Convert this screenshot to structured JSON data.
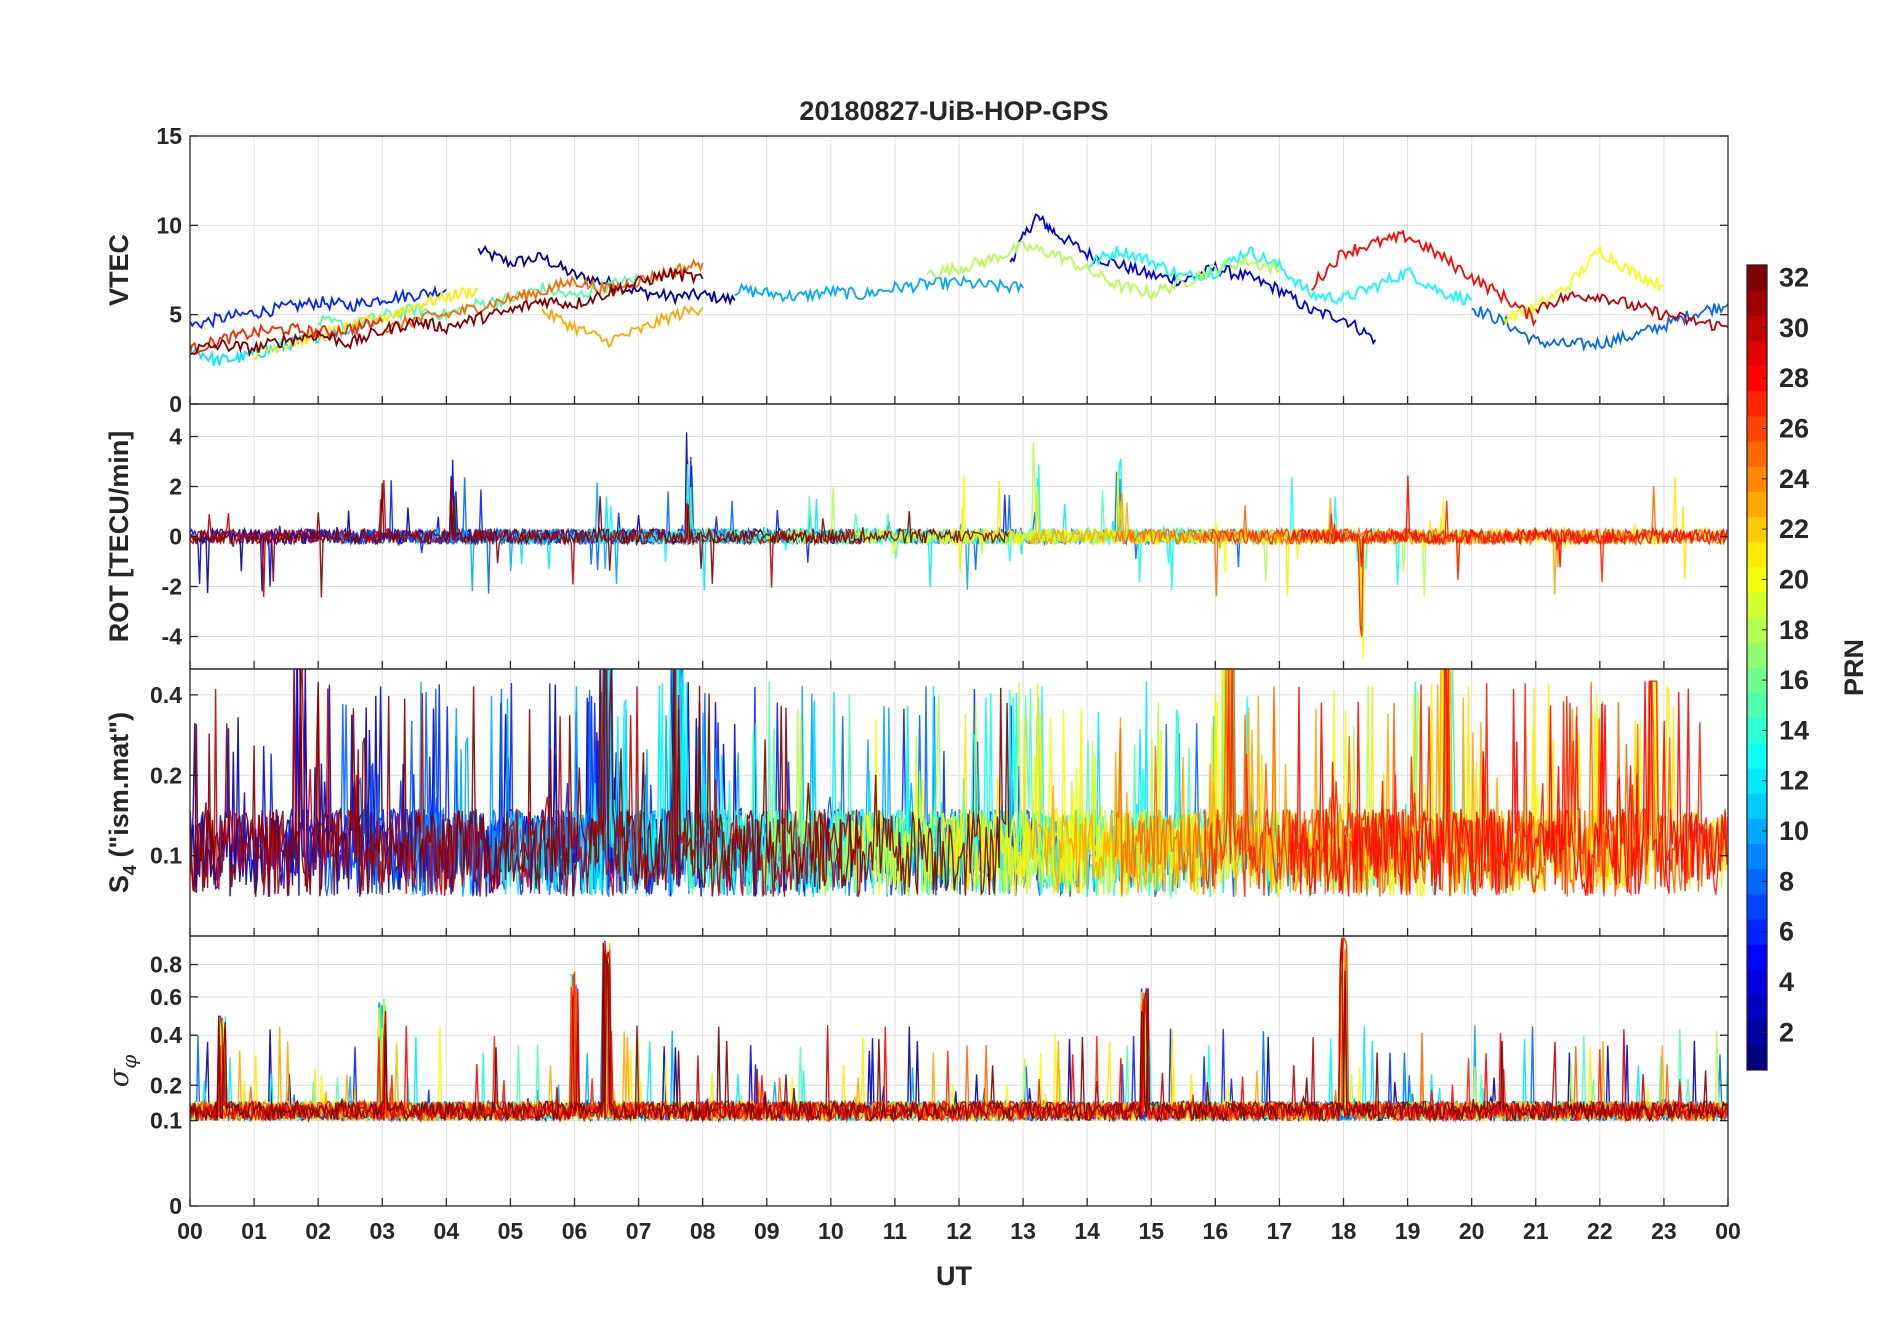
{
  "chart_data": {
    "type": "line",
    "title": "20180827-UiB-HOP-GPS",
    "xlabel": "UT",
    "x_tick_labels": [
      "00",
      "01",
      "02",
      "03",
      "04",
      "05",
      "06",
      "07",
      "08",
      "09",
      "10",
      "11",
      "12",
      "13",
      "14",
      "15",
      "16",
      "17",
      "18",
      "19",
      "20",
      "21",
      "22",
      "23",
      "00"
    ],
    "x_range_hours": [
      0,
      24
    ],
    "grid": true,
    "colorbar": {
      "label": "PRN",
      "range": [
        1,
        32
      ],
      "colormap": "jet",
      "tick_labels": [
        "2",
        "4",
        "6",
        "8",
        "10",
        "12",
        "14",
        "16",
        "18",
        "20",
        "22",
        "24",
        "26",
        "28",
        "30",
        "32"
      ],
      "placement": "right"
    },
    "panels": [
      {
        "id": "vtec",
        "ylabel": "VTEC",
        "ylim": [
          0,
          15
        ],
        "y_ticks": [
          0,
          5,
          10,
          15
        ],
        "y_tick_labels": [
          "0",
          "5",
          "10",
          "15"
        ],
        "series": [
          {
            "prn": 2,
            "x": [
              4.5,
              5.0,
              5.5,
              6.0,
              6.5,
              7.0,
              7.5,
              8.0,
              8.5
            ],
            "y": [
              8.6,
              7.9,
              8.2,
              7.2,
              6.8,
              6.3,
              6.0,
              6.1,
              5.8
            ]
          },
          {
            "prn": 4,
            "x": [
              12.8,
              13.2,
              13.5,
              14.0,
              14.5,
              15.0,
              15.5,
              16.0,
              16.5,
              17.0,
              17.5,
              18.0,
              18.5
            ],
            "y": [
              8.0,
              10.5,
              9.6,
              8.4,
              7.8,
              7.2,
              6.9,
              7.6,
              7.1,
              6.4,
              5.2,
              4.8,
              3.6
            ]
          },
          {
            "prn": 6,
            "x": [
              0.0,
              0.5,
              1.0,
              1.5,
              2.0,
              2.5,
              3.0,
              3.5,
              4.0
            ],
            "y": [
              4.4,
              4.8,
              5.1,
              5.4,
              5.7,
              5.5,
              5.9,
              6.1,
              6.4
            ]
          },
          {
            "prn": 8,
            "x": [
              20.0,
              20.5,
              21.0,
              21.5,
              22.0,
              22.5,
              23.0,
              23.5,
              24.0
            ],
            "y": [
              5.4,
              4.6,
              3.5,
              3.3,
              3.4,
              3.8,
              4.4,
              5.1,
              5.6
            ]
          },
          {
            "prn": 10,
            "x": [
              8.5,
              9.0,
              9.5,
              10.0,
              10.5,
              11.0,
              11.5,
              12.0,
              12.5,
              13.0
            ],
            "y": [
              6.4,
              6.2,
              6.0,
              6.3,
              6.1,
              6.5,
              6.7,
              6.8,
              6.6,
              6.5
            ]
          },
          {
            "prn": 12,
            "x": [
              0.0,
              0.4,
              0.8,
              1.2,
              1.6,
              2.0,
              2.5,
              3.0
            ],
            "y": [
              3.2,
              2.4,
              2.6,
              3.0,
              3.4,
              3.8,
              4.2,
              4.7
            ]
          },
          {
            "prn": 13,
            "x": [
              14.0,
              14.5,
              15.0,
              15.5,
              16.0,
              16.5,
              17.0,
              17.5,
              18.0,
              18.5,
              19.0,
              19.5,
              20.0
            ],
            "y": [
              7.8,
              8.6,
              8.0,
              7.1,
              7.4,
              8.6,
              7.7,
              6.1,
              5.9,
              6.6,
              7.4,
              6.3,
              5.8
            ]
          },
          {
            "prn": 15,
            "x": [
              2.0,
              2.5,
              3.0,
              3.5,
              4.0,
              4.5,
              5.0,
              5.5,
              6.0,
              6.5,
              7.0
            ],
            "y": [
              4.6,
              4.4,
              4.9,
              5.3,
              5.0,
              5.6,
              5.9,
              6.5,
              6.0,
              6.6,
              7.0
            ]
          },
          {
            "prn": 18,
            "x": [
              11.5,
              12.0,
              12.5,
              13.0,
              13.5,
              14.0,
              14.5,
              15.0,
              15.5,
              16.0,
              16.5,
              17.0
            ],
            "y": [
              7.3,
              7.6,
              8.1,
              8.8,
              8.4,
              7.5,
              6.6,
              6.2,
              6.8,
              7.6,
              8.0,
              7.5
            ]
          },
          {
            "prn": 20,
            "x": [
              20.5,
              21.0,
              21.5,
              22.0,
              22.5,
              23.0
            ],
            "y": [
              4.8,
              5.4,
              6.6,
              8.6,
              7.4,
              6.6
            ]
          },
          {
            "prn": 21,
            "x": [
              1.0,
              1.5,
              2.0,
              2.5,
              3.0,
              3.5,
              4.0,
              4.5
            ],
            "y": [
              2.8,
              3.4,
              3.8,
              4.3,
              4.8,
              5.5,
              6.0,
              6.4
            ]
          },
          {
            "prn": 23,
            "x": [
              5.5,
              6.0,
              6.5,
              7.0,
              7.5,
              8.0
            ],
            "y": [
              5.2,
              4.3,
              3.5,
              4.1,
              4.9,
              5.4
            ]
          },
          {
            "prn": 25,
            "x": [
              3.0,
              3.5,
              4.0,
              4.5,
              5.0,
              5.5,
              6.0,
              6.5,
              7.0,
              7.5,
              8.0
            ],
            "y": [
              4.1,
              4.7,
              5.0,
              5.4,
              5.9,
              6.3,
              6.9,
              6.4,
              6.9,
              7.4,
              7.9
            ]
          },
          {
            "prn": 27,
            "x": [
              0.0,
              0.5,
              1.0,
              1.5,
              2.0,
              2.5,
              3.0
            ],
            "y": [
              3.0,
              3.6,
              4.0,
              4.2,
              4.0,
              4.2,
              4.6
            ]
          },
          {
            "prn": 28,
            "x": [
              17.5,
              18.0,
              18.5,
              19.0,
              19.5,
              20.0,
              20.5,
              21.0
            ],
            "y": [
              6.6,
              8.5,
              9.0,
              9.4,
              8.3,
              7.1,
              6.0,
              4.7
            ]
          },
          {
            "prn": 30,
            "x": [
              21.0,
              21.5,
              22.0,
              22.5,
              23.0,
              23.5,
              24.0
            ],
            "y": [
              5.4,
              6.0,
              6.1,
              5.5,
              5.0,
              4.6,
              4.3
            ]
          },
          {
            "prn": 32,
            "x": [
              0.0,
              0.5,
              1.0,
              1.5,
              2.0,
              2.5,
              3.0,
              3.5,
              4.0,
              4.5,
              5.0,
              5.5,
              6.0,
              6.5,
              7.0,
              7.5,
              8.0
            ],
            "y": [
              3.0,
              3.3,
              3.1,
              3.6,
              3.9,
              3.4,
              4.1,
              4.6,
              4.3,
              4.8,
              5.2,
              5.8,
              5.6,
              6.2,
              6.8,
              7.3,
              7.0
            ]
          }
        ]
      },
      {
        "id": "rot",
        "ylabel": "ROT [TECU/min]",
        "ylim": [
          -5.3,
          5.3
        ],
        "y_ticks": [
          -4,
          -2,
          0,
          2,
          4
        ],
        "y_tick_labels": [
          "-4",
          "-2",
          "0",
          "2",
          "4"
        ],
        "series_summary": "fluctuations around 0 for all PRNs; largest excursions near 07-08 UT (+4.5), 13-15 UT (±4) and 18-18.5 UT (-5)"
      },
      {
        "id": "s4",
        "ylabel": "S4 (\"ism.mat\")",
        "ylim": [
          0.05,
          0.5
        ],
        "y_scale": "log",
        "y_ticks": [
          0.1,
          0.2,
          0.4
        ],
        "y_tick_labels": [
          "0.1",
          "0.2",
          "0.4"
        ],
        "series_summary": "noisy baseline ~0.07-0.15 with frequent spikes up to ~0.5 throughout the day"
      },
      {
        "id": "sigma_phi",
        "ylabel": "σφ",
        "ylim": [
          0,
          1
        ],
        "y_scale": "sqrt",
        "y_ticks": [
          0,
          0.1,
          0.2,
          0.4,
          0.6,
          0.8
        ],
        "y_tick_labels": [
          "0",
          "0.1",
          "0.2",
          "0.4",
          "0.6",
          "0.8"
        ],
        "series_summary": "baseline ~0.1-0.15; peaks near 06.5 UT (~1.0), 03 UT (~0.6), 14.9 UT (~0.65) and 17.9-18.2 UT (~1.0)"
      }
    ]
  }
}
